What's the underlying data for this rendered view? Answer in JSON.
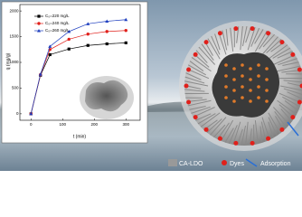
{
  "chart_data": {
    "type": "line",
    "x_label": "t (min)",
    "y_label": "q (mg/g)",
    "x": [
      0,
      30,
      60,
      120,
      180,
      240,
      300
    ],
    "series": [
      {
        "name": "C₀=220 mg/L",
        "color": "#000000",
        "marker": "square",
        "values": [
          0,
          750,
          1150,
          1260,
          1330,
          1360,
          1380
        ]
      },
      {
        "name": "C₀=240 mg/L",
        "color": "#e0201b",
        "marker": "circle",
        "values": [
          0,
          760,
          1250,
          1450,
          1550,
          1600,
          1620
        ]
      },
      {
        "name": "C₀=260 mg/L",
        "color": "#1f3fbf",
        "marker": "triangle",
        "values": [
          0,
          770,
          1310,
          1600,
          1750,
          1800,
          1830
        ]
      }
    ],
    "xlim": [
      -35,
      345
    ],
    "xticks": [
      0,
      100,
      200,
      300
    ],
    "ylim": [
      -125,
      2125
    ],
    "yticks": [
      0,
      500,
      1000,
      1500,
      2000
    ]
  },
  "figure_legend": {
    "items": [
      "CA-LDO",
      "Dyes",
      "Adsorption"
    ]
  }
}
